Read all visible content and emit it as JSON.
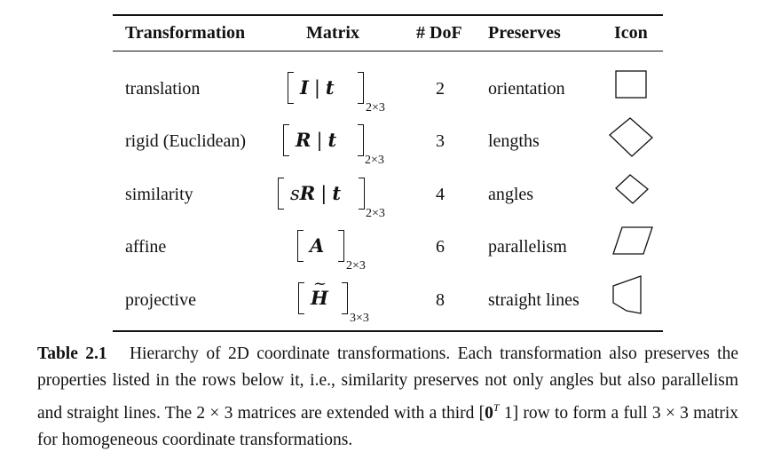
{
  "table": {
    "headers": [
      "Transformation",
      "Matrix",
      "# DoF",
      "Preserves",
      "Icon"
    ],
    "rows": [
      {
        "name": "translation",
        "matrix_left": "I",
        "matrix_right": "t",
        "matrix_size": "2×3",
        "dof": "2",
        "preserves": "orientation",
        "icon": "square-icon"
      },
      {
        "name": "rigid (Euclidean)",
        "matrix_left": "R",
        "matrix_right": "t",
        "matrix_size": "2×3",
        "dof": "3",
        "preserves": "lengths",
        "icon": "rotated-square-icon"
      },
      {
        "name": "similarity",
        "matrix_scalar": "s",
        "matrix_left": "R",
        "matrix_right": "t",
        "matrix_size": "2×3",
        "dof": "4",
        "preserves": "angles",
        "icon": "small-rotated-square-icon"
      },
      {
        "name": "affine",
        "matrix_left": "A",
        "matrix_size": "2×3",
        "dof": "6",
        "preserves": "parallelism",
        "icon": "parallelogram-icon"
      },
      {
        "name": "projective",
        "matrix_left": "H",
        "matrix_size": "3×3",
        "dof": "8",
        "preserves": "straight lines",
        "icon": "trapezoid-icon"
      }
    ]
  },
  "caption": {
    "label": "Table 2.1",
    "text_1": "Hierarchy of 2D coordinate transformations. Each transformation also preserves the properties listed in the rows below it, i.e., similarity preserves not only angles but also parallelism and straight lines. The ",
    "math_dims": "2 × 3",
    "text_2": " matrices are extended with a third ",
    "row_open": "[",
    "row_zero": "0",
    "row_sup": "T",
    "row_one": " 1]",
    "text_3": " row to form a full ",
    "math_dims2": "3 × 3",
    "text_4": " matrix for homogeneous coordinate transformations."
  }
}
